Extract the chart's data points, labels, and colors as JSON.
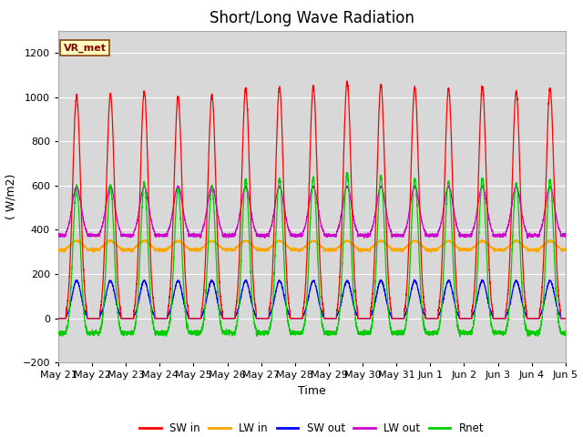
{
  "title": "Short/Long Wave Radiation",
  "xlabel": "Time",
  "ylabel": "( W/m2)",
  "ylim": [
    -200,
    1300
  ],
  "yticks": [
    -200,
    0,
    200,
    400,
    600,
    800,
    1000,
    1200
  ],
  "x_labels": [
    "May 21",
    "May 22",
    "May 23",
    "May 24",
    "May 25",
    "May 26",
    "May 27",
    "May 28",
    "May 29",
    "May 30",
    "May 31",
    "Jun 1",
    "Jun 2",
    "Jun 3",
    "Jun 4",
    "Jun 5"
  ],
  "n_days": 15,
  "annotation": "VR_met",
  "colors": {
    "SW_in": "#ff0000",
    "LW_in": "#ffa500",
    "SW_out": "#0000ff",
    "LW_out": "#cc00cc",
    "Rnet": "#00cc00"
  },
  "legend_labels": [
    "SW in",
    "LW in",
    "SW out",
    "LW out",
    "Rnet"
  ],
  "background_color": "#ffffff",
  "plot_bg_color": "#d8d8d8",
  "grid_color": "#ffffff",
  "title_fontsize": 12,
  "axis_fontsize": 9,
  "tick_fontsize": 8,
  "SW_peaks": [
    1005,
    1010,
    1025,
    1000,
    1010,
    1040,
    1045,
    1050,
    1070,
    1055,
    1045,
    1035,
    1045,
    1025,
    1040
  ],
  "LW_in_night": 310,
  "LW_out_night": 375,
  "SW_out_peak": 170,
  "LW_in_day_extra": 40,
  "LW_out_day_extra": 220,
  "night_Rnet": -80
}
